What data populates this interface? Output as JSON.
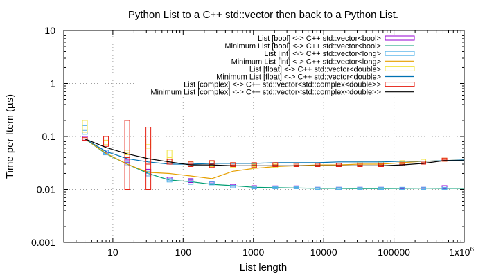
{
  "chart_data": {
    "type": "line",
    "title": "Python List to a C++ std::vector then back to a Python List.",
    "xlabel": "List length",
    "ylabel": "Time per Item (µs)",
    "x_scale": "log",
    "y_scale": "log",
    "xlim": [
      2,
      1000000
    ],
    "ylim": [
      0.001,
      10
    ],
    "x_ticks": [
      10,
      100,
      1000,
      10000,
      100000,
      1000000
    ],
    "x_tick_labels": [
      "10",
      "100",
      "1000",
      "10000",
      "100000",
      "1x10"
    ],
    "x_tick_last_exponent": "6",
    "y_ticks": [
      0.001,
      0.01,
      0.1,
      1,
      10
    ],
    "y_tick_labels": [
      "0.001",
      "0.01",
      "0.1",
      "1",
      "10"
    ],
    "grid": true,
    "legend_position": "top-right",
    "x": [
      4,
      8,
      16,
      32,
      64,
      128,
      256,
      512,
      1024,
      2048,
      4096,
      8192,
      16384,
      32768,
      65536,
      131072,
      262144,
      524288,
      1048576
    ],
    "series": [
      {
        "name": "List [bool] <-> C++ std::vector<bool>",
        "style": "box",
        "color": "#9400d3",
        "values": [
          0.09,
          0.05,
          0.032,
          0.021,
          0.016,
          0.015,
          0.013,
          0.012,
          0.011,
          0.011,
          0.011,
          0.0105,
          0.0105,
          0.0105,
          0.0105,
          0.0105,
          0.0107,
          0.0107,
          0.0106
        ],
        "low": [
          0.085,
          0.045,
          0.028,
          0.018,
          0.015,
          0.0135,
          0.0125,
          0.0115,
          0.0105,
          0.0105,
          0.0105,
          0.01,
          0.01,
          0.01,
          0.01,
          0.0102,
          0.0104,
          0.0102,
          0.0102
        ],
        "high": [
          0.1,
          0.055,
          0.036,
          0.024,
          0.017,
          0.016,
          0.0138,
          0.0125,
          0.0118,
          0.0117,
          0.0117,
          0.011,
          0.011,
          0.011,
          0.011,
          0.0109,
          0.011,
          0.0118,
          0.011
        ]
      },
      {
        "name": "Minimum List [bool] <-> C++ std::vector<bool>",
        "style": "line",
        "color": "#009e73",
        "values": [
          0.09,
          0.047,
          0.03,
          0.02,
          0.015,
          0.014,
          0.0125,
          0.0118,
          0.011,
          0.0108,
          0.0107,
          0.0105,
          0.0105,
          0.0104,
          0.0104,
          0.0105,
          0.0106,
          0.0105,
          0.0105
        ]
      },
      {
        "name": "List [int] <-> C++ std::vector<long>",
        "style": "box",
        "color": "#56b4e9",
        "values": [
          0.13,
          0.048,
          0.03,
          0.02,
          0.015,
          0.014,
          0.013,
          0.0115,
          0.011,
          0.011,
          0.011,
          0.0105,
          0.0105,
          0.0105,
          0.0105,
          0.0105,
          0.0105,
          0.0105,
          0.0105
        ],
        "low": [
          0.11,
          0.045,
          0.028,
          0.018,
          0.0138,
          0.0125,
          0.0122,
          0.0108,
          0.0103,
          0.0103,
          0.0103,
          0.01,
          0.01,
          0.01,
          0.01,
          0.01,
          0.01,
          0.01,
          0.01
        ],
        "high": [
          0.16,
          0.055,
          0.033,
          0.022,
          0.016,
          0.0155,
          0.014,
          0.012,
          0.0115,
          0.0113,
          0.0113,
          0.011,
          0.011,
          0.011,
          0.011,
          0.011,
          0.011,
          0.011,
          0.011
        ]
      },
      {
        "name": "Minimum List [int] <-> C++ std::vector<long>",
        "style": "line",
        "color": "#e69f00",
        "values": [
          0.09,
          0.048,
          0.03,
          0.021,
          0.02,
          0.018,
          0.016,
          0.022,
          0.025,
          0.027,
          0.028,
          0.029,
          0.029,
          0.03,
          0.03,
          0.032,
          0.034,
          0.035,
          0.036
        ]
      },
      {
        "name": "List [float] <-> C++ std::vector<double>",
        "style": "box",
        "color": "#f0e442",
        "values": [
          0.15,
          0.075,
          0.05,
          0.07,
          0.04,
          0.03,
          0.03,
          0.028,
          0.027,
          0.028,
          0.029,
          0.029,
          0.029,
          0.03,
          0.031,
          0.033,
          0.034,
          0.036,
          0.04
        ],
        "low": [
          0.12,
          0.07,
          0.045,
          0.06,
          0.033,
          0.027,
          0.027,
          0.026,
          0.025,
          0.026,
          0.027,
          0.027,
          0.027,
          0.028,
          0.029,
          0.031,
          0.032,
          0.034,
          0.037
        ],
        "high": [
          0.2,
          0.085,
          0.055,
          0.09,
          0.055,
          0.034,
          0.034,
          0.032,
          0.03,
          0.03,
          0.031,
          0.031,
          0.031,
          0.033,
          0.034,
          0.035,
          0.037,
          0.039,
          0.045
        ]
      },
      {
        "name": "Minimum List [float] <-> C++ std::vector<double>",
        "style": "line",
        "color": "#0072b2",
        "values": [
          0.09,
          0.052,
          0.038,
          0.033,
          0.03,
          0.03,
          0.031,
          0.031,
          0.031,
          0.032,
          0.032,
          0.032,
          0.033,
          0.033,
          0.033,
          0.034,
          0.034,
          0.035,
          0.036
        ]
      },
      {
        "name": "List [complex] <-> C++ std::vector<std::complex<double>>",
        "style": "box",
        "color": "#e51e10",
        "values": [
          0.09,
          0.09,
          0.04,
          0.03,
          0.033,
          0.03,
          0.03,
          0.029,
          0.029,
          0.029,
          0.029,
          0.029,
          0.029,
          0.029,
          0.029,
          0.03,
          0.032,
          0.036,
          0.036
        ],
        "low": [
          0.085,
          0.065,
          0.01,
          0.01,
          0.03,
          0.027,
          0.026,
          0.027,
          0.026,
          0.027,
          0.027,
          0.027,
          0.027,
          0.027,
          0.027,
          0.028,
          0.03,
          0.034,
          0.034
        ],
        "high": [
          0.095,
          0.1,
          0.2,
          0.15,
          0.037,
          0.033,
          0.035,
          0.032,
          0.032,
          0.032,
          0.031,
          0.031,
          0.031,
          0.031,
          0.031,
          0.032,
          0.034,
          0.039,
          0.039
        ]
      },
      {
        "name": "Minimum List [complex] <-> C++ std::vector<std::complex<double>>",
        "style": "line",
        "color": "#000000",
        "values": [
          0.09,
          0.062,
          0.047,
          0.038,
          0.033,
          0.029,
          0.029,
          0.028,
          0.028,
          0.028,
          0.028,
          0.028,
          0.028,
          0.028,
          0.028,
          0.029,
          0.031,
          0.035,
          0.035
        ]
      }
    ]
  }
}
